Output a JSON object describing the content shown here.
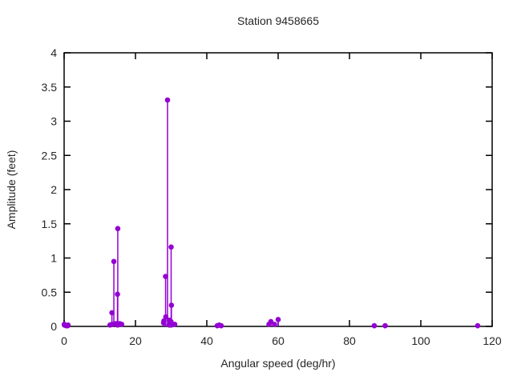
{
  "chart_data": {
    "type": "scatter",
    "style": "stem-impulses-with-points",
    "title": "Station 9458665",
    "xlabel": "Angular speed (deg/hr)",
    "ylabel": "Amplitude (feet)",
    "xlim": [
      0,
      120
    ],
    "ylim": [
      0,
      4
    ],
    "xticks": [
      0,
      20,
      40,
      60,
      80,
      100,
      120
    ],
    "yticks": [
      0,
      0.5,
      1,
      1.5,
      2,
      2.5,
      3,
      3.5,
      4
    ],
    "grid": false,
    "legend_position": "none",
    "marker": "filled-circle",
    "series_color": "#9400d3",
    "points": [
      [
        0.041,
        0.03
      ],
      [
        0.082,
        0.02
      ],
      [
        0.544,
        0.01
      ],
      [
        1.016,
        0.01
      ],
      [
        1.098,
        0.02
      ],
      [
        12.854,
        0.02
      ],
      [
        13.399,
        0.2
      ],
      [
        13.472,
        0.03
      ],
      [
        13.943,
        0.95
      ],
      [
        14.497,
        0.04
      ],
      [
        14.959,
        0.47
      ],
      [
        15.0,
        0.02
      ],
      [
        15.041,
        1.43
      ],
      [
        15.585,
        0.04
      ],
      [
        16.139,
        0.03
      ],
      [
        27.895,
        0.05
      ],
      [
        27.968,
        0.08
      ],
      [
        28.439,
        0.73
      ],
      [
        28.512,
        0.14
      ],
      [
        28.984,
        3.31
      ],
      [
        29.456,
        0.02
      ],
      [
        29.528,
        0.09
      ],
      [
        29.959,
        0.07
      ],
      [
        30.0,
        1.16
      ],
      [
        30.041,
        0.02
      ],
      [
        30.082,
        0.31
      ],
      [
        31.016,
        0.03
      ],
      [
        42.927,
        0.01
      ],
      [
        43.476,
        0.02
      ],
      [
        44.025,
        0.01
      ],
      [
        57.424,
        0.03
      ],
      [
        57.968,
        0.07
      ],
      [
        58.984,
        0.03
      ],
      [
        60.0,
        0.1
      ],
      [
        86.952,
        0.01
      ],
      [
        90.0,
        0.01
      ],
      [
        115.936,
        0.01
      ]
    ]
  },
  "colors": {
    "accent": "#9400d3",
    "axis": "#000000",
    "text": "#262626",
    "background": "#ffffff"
  }
}
